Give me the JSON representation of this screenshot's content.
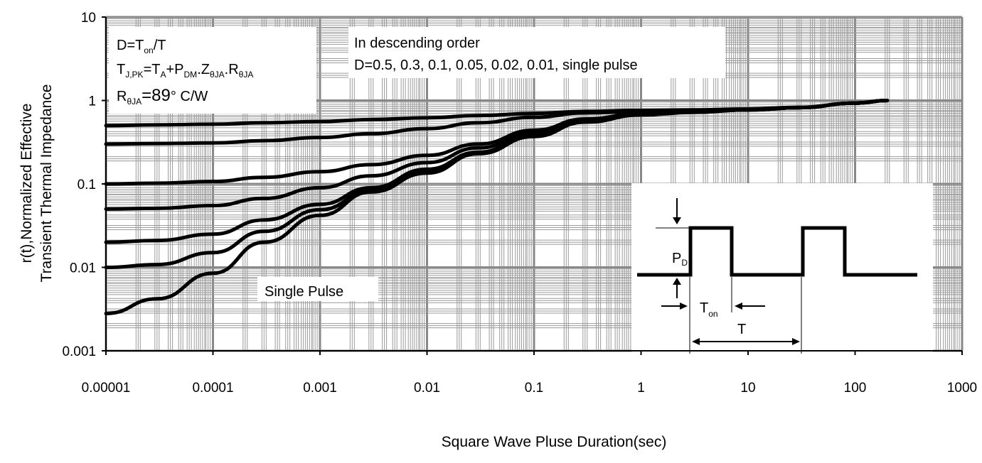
{
  "chart_data": {
    "type": "line",
    "title": "",
    "xlabel": "Square Wave Pluse Duration(sec)",
    "ylabel_line1": "r(t),Normalized Effective",
    "ylabel_line2": "Transient Thermal Impedance",
    "x_scale": "log",
    "y_scale": "log",
    "xlim": [
      1e-05,
      1000
    ],
    "ylim": [
      0.001,
      10
    ],
    "grid": true,
    "x_ticks": [
      "0.00001",
      "0.0001",
      "0.001",
      "0.01",
      "0.1",
      "1",
      "10",
      "100",
      "1000"
    ],
    "y_ticks": [
      "0.001",
      "0.01",
      "0.1",
      "1",
      "10"
    ],
    "x": [
      1e-05,
      3e-05,
      0.0001,
      0.0003,
      0.001,
      0.003,
      0.01,
      0.03,
      0.1,
      0.3,
      1,
      3,
      10,
      30,
      100,
      200
    ],
    "series": [
      {
        "values": [
          0.5,
          0.51,
          0.52,
          0.54,
          0.56,
          0.59,
          0.62,
          0.66,
          0.7,
          0.74,
          0.76,
          0.77,
          0.79,
          0.83,
          0.93,
          1.0
        ]
      },
      {
        "values": [
          0.3,
          0.305,
          0.31,
          0.33,
          0.36,
          0.4,
          0.46,
          0.54,
          0.63,
          0.71,
          0.74,
          0.76,
          0.78,
          0.82,
          0.93,
          1.0
        ]
      },
      {
        "values": [
          0.1,
          0.102,
          0.107,
          0.12,
          0.14,
          0.17,
          0.22,
          0.3,
          0.44,
          0.6,
          0.7,
          0.74,
          0.77,
          0.82,
          0.93,
          1.0
        ]
      },
      {
        "values": [
          0.05,
          0.051,
          0.055,
          0.067,
          0.09,
          0.125,
          0.18,
          0.27,
          0.41,
          0.58,
          0.69,
          0.73,
          0.77,
          0.82,
          0.93,
          1.0
        ]
      },
      {
        "values": [
          0.02,
          0.021,
          0.025,
          0.037,
          0.057,
          0.09,
          0.15,
          0.24,
          0.39,
          0.57,
          0.68,
          0.73,
          0.77,
          0.82,
          0.93,
          1.0
        ]
      },
      {
        "values": [
          0.01,
          0.0108,
          0.015,
          0.027,
          0.049,
          0.083,
          0.14,
          0.23,
          0.38,
          0.56,
          0.68,
          0.73,
          0.77,
          0.82,
          0.93,
          1.0
        ]
      },
      {
        "values": [
          0.0028,
          0.0042,
          0.0085,
          0.02,
          0.042,
          0.08,
          0.135,
          0.23,
          0.37,
          0.55,
          0.67,
          0.72,
          0.77,
          0.82,
          0.93,
          1.0
        ]
      }
    ],
    "annotations": {
      "formula_line1": "D=T",
      "formula_line1_sub": "on",
      "formula_line1_tail": "/T",
      "formula_line2_a": "T",
      "formula_line2_a_sub": "J,PK",
      "formula_line2_b": "=T",
      "formula_line2_b_sub": "A",
      "formula_line2_c": "+P",
      "formula_line2_c_sub": "DM",
      "formula_line2_d": ".Z",
      "formula_line2_d_sub": "θJA",
      "formula_line2_e": ".R",
      "formula_line2_e_sub": "θJA",
      "formula_line3_a": "R",
      "formula_line3_a_sub": "θJA",
      "formula_line3_b": "=89",
      "formula_line3_c": "°  C/W",
      "order_line1": "In descending order",
      "order_line2": "D=0.5, 0.3, 0.1, 0.05, 0.02, 0.01, single pulse",
      "single_pulse": "Single Pulse",
      "inset_pd": "P",
      "inset_pd_sub": "D",
      "inset_ton": "T",
      "inset_ton_sub": "on",
      "inset_t": "T"
    }
  }
}
